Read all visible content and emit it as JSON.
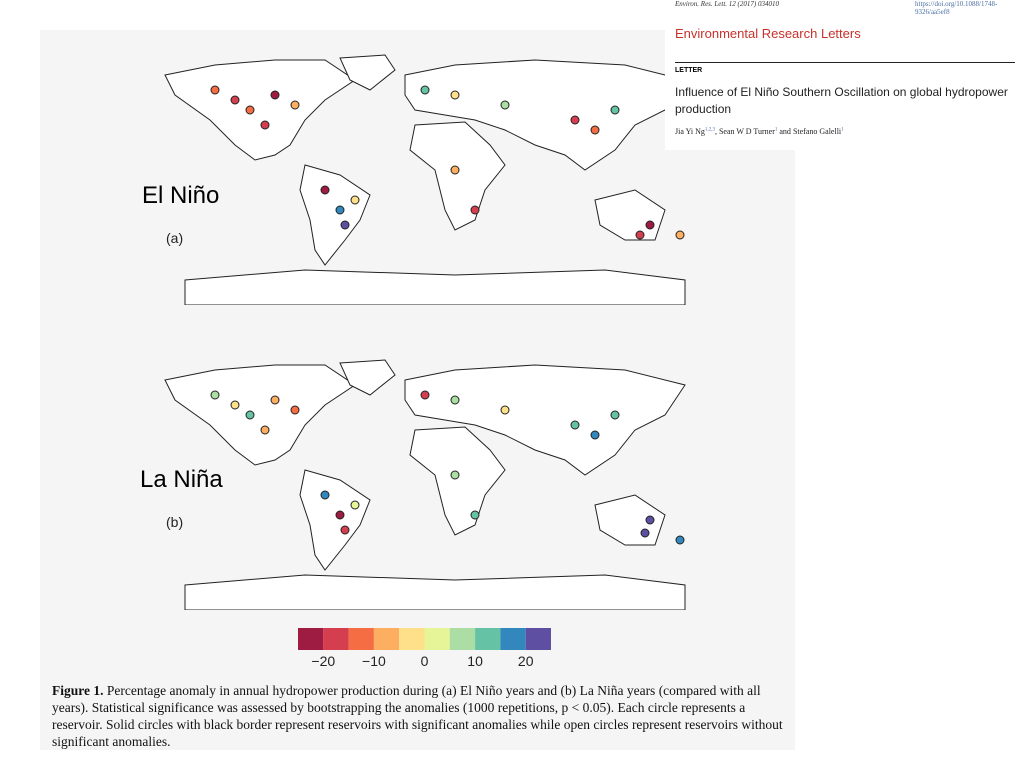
{
  "header": {
    "citation": "Environ. Res. Lett. 12 (2017) 034010",
    "doi": "https://doi.org/10.1088/1748-9326/aa5ef8",
    "journal": "Environmental Research Letters",
    "article_type": "LETTER",
    "title": "Influence of El Niño Southern Oscillation on global hydropower production",
    "authors": [
      "Jia Yi Ng",
      "Sean W D Turner",
      "Stefano Galelli"
    ],
    "affiliations": [
      "1,2,3",
      "1",
      "1"
    ],
    "separator": ",",
    "conjunction": "and"
  },
  "panels": [
    {
      "label": "El Niño",
      "letter": "(a)"
    },
    {
      "label": "La Niña",
      "letter": "(b)"
    }
  ],
  "colorbar": {
    "colors": [
      "#9e1b42",
      "#d53e4f",
      "#f46d43",
      "#fdae61",
      "#fee08b",
      "#e6f598",
      "#abdda4",
      "#66c2a5",
      "#3288bd",
      "#5e4fa2"
    ],
    "lim": [
      -25,
      25
    ],
    "ticks": [
      {
        "value": -20,
        "label": "−20"
      },
      {
        "value": -10,
        "label": "−10"
      },
      0,
      10,
      20
    ]
  },
  "caption": {
    "label": "Figure 1.",
    "text": "Percentage anomaly in annual hydropower production during (a) El Niño years and (b) La Niña years (compared with all years). Statistical significance was assessed by bootstrapping the anomalies (1000 repetitions, p < 0.05). Each circle represents a reservoir. Solid circles with black border represent reservoirs with significant anomalies while open circles represent reservoirs without significant anomalies."
  }
}
